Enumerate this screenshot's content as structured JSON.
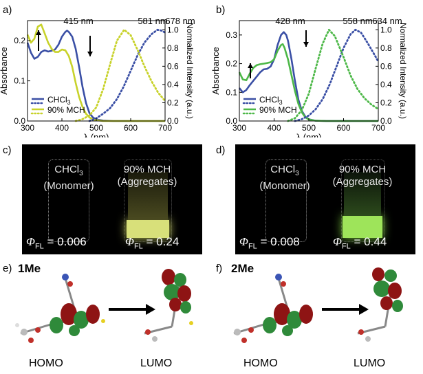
{
  "panels": {
    "a": "a)",
    "b": "b)",
    "c": "c)",
    "d": "d)",
    "e": "e)",
    "f": "f)"
  },
  "chart_data": [
    {
      "type": "line",
      "panel": "a",
      "xlabel": "λ (nm)",
      "ylabel": "Absorbance",
      "y2label": "Normalized Intensity (a.u.)",
      "xlim": [
        300,
        700
      ],
      "ylim": [
        0,
        0.25
      ],
      "y2lim": [
        0,
        1.1
      ],
      "xticks": [
        "300",
        "400",
        "500",
        "600",
        "700"
      ],
      "yticks": [
        "0.0",
        "0.1",
        "0.2"
      ],
      "y2ticks": [
        "0.0",
        "0.2",
        "0.4",
        "0.6",
        "0.8",
        "1.0"
      ],
      "annotations": [
        "415 nm",
        "581 nm",
        "678 nm"
      ],
      "legend": [
        "CHCl3",
        "90% MCH"
      ],
      "colors": {
        "chcl3": "#3a4fa5",
        "mch": "#c8d22a"
      },
      "series": [
        {
          "name": "CHCl3",
          "style": "solid",
          "axis": "left",
          "x": [
            300,
            310,
            320,
            330,
            340,
            350,
            360,
            370,
            380,
            390,
            400,
            410,
            415,
            420,
            430,
            440,
            450,
            460,
            470,
            480,
            490,
            500,
            520,
            550,
            600,
            700
          ],
          "y": [
            0.195,
            0.17,
            0.155,
            0.16,
            0.172,
            0.176,
            0.173,
            0.175,
            0.178,
            0.19,
            0.21,
            0.222,
            0.225,
            0.222,
            0.21,
            0.18,
            0.135,
            0.085,
            0.045,
            0.02,
            0.009,
            0.004,
            0.001,
            0,
            0,
            0
          ]
        },
        {
          "name": "90% MCH",
          "style": "solid",
          "axis": "left",
          "x": [
            300,
            310,
            320,
            330,
            340,
            350,
            360,
            370,
            380,
            390,
            400,
            410,
            420,
            430,
            440,
            450,
            460,
            470,
            480,
            490,
            500,
            520,
            550,
            600,
            700
          ],
          "y": [
            0.215,
            0.195,
            0.205,
            0.235,
            0.24,
            0.218,
            0.195,
            0.18,
            0.172,
            0.172,
            0.178,
            0.176,
            0.162,
            0.135,
            0.095,
            0.06,
            0.035,
            0.018,
            0.009,
            0.004,
            0.002,
            0,
            0,
            0,
            0
          ]
        },
        {
          "name": "CHCl3",
          "style": "dotted",
          "axis": "right",
          "x": [
            480,
            500,
            520,
            540,
            560,
            580,
            600,
            620,
            640,
            660,
            678,
            690,
            700
          ],
          "y": [
            0.0,
            0.03,
            0.08,
            0.14,
            0.24,
            0.38,
            0.55,
            0.72,
            0.86,
            0.95,
            1.0,
            0.99,
            0.97
          ]
        },
        {
          "name": "90% MCH",
          "style": "dotted",
          "axis": "right",
          "x": [
            440,
            460,
            480,
            500,
            520,
            540,
            560,
            581,
            600,
            620,
            640,
            660,
            680,
            700
          ],
          "y": [
            0.0,
            0.02,
            0.06,
            0.15,
            0.35,
            0.62,
            0.88,
            1.0,
            0.94,
            0.78,
            0.6,
            0.44,
            0.31,
            0.22
          ]
        }
      ]
    },
    {
      "type": "line",
      "panel": "b",
      "xlabel": "λ (nm)",
      "ylabel": "Absorbance",
      "y2label": "Normalized Intensity (a.u.)",
      "xlim": [
        300,
        700
      ],
      "ylim": [
        0,
        0.35
      ],
      "y2lim": [
        0,
        1.1
      ],
      "xticks": [
        "300",
        "400",
        "500",
        "600",
        "700"
      ],
      "yticks": [
        "0.0",
        "0.1",
        "0.2",
        "0.3"
      ],
      "y2ticks": [
        "0.0",
        "0.2",
        "0.4",
        "0.6",
        "0.8",
        "1.0"
      ],
      "annotations": [
        "428 nm",
        "558 nm",
        "634 nm"
      ],
      "legend": [
        "CHCl3",
        "90% MCH"
      ],
      "colors": {
        "chcl3": "#3a4fa5",
        "mch": "#4db848"
      },
      "series": [
        {
          "name": "CHCl3",
          "style": "solid",
          "axis": "left",
          "x": [
            300,
            310,
            320,
            330,
            340,
            350,
            360,
            370,
            380,
            390,
            400,
            410,
            420,
            428,
            435,
            440,
            450,
            460,
            470,
            480,
            490,
            500,
            520,
            550,
            600,
            700
          ],
          "y": [
            0.115,
            0.1,
            0.108,
            0.125,
            0.14,
            0.155,
            0.17,
            0.18,
            0.182,
            0.19,
            0.215,
            0.265,
            0.3,
            0.31,
            0.3,
            0.28,
            0.215,
            0.14,
            0.075,
            0.035,
            0.015,
            0.006,
            0.001,
            0,
            0,
            0
          ]
        },
        {
          "name": "90% MCH",
          "style": "solid",
          "axis": "left",
          "x": [
            300,
            310,
            320,
            330,
            340,
            350,
            360,
            370,
            380,
            390,
            400,
            410,
            420,
            425,
            430,
            440,
            450,
            460,
            470,
            480,
            490,
            500,
            520,
            550,
            600,
            700
          ],
          "y": [
            0.17,
            0.145,
            0.142,
            0.165,
            0.185,
            0.195,
            0.198,
            0.2,
            0.202,
            0.205,
            0.215,
            0.245,
            0.265,
            0.268,
            0.255,
            0.215,
            0.16,
            0.105,
            0.06,
            0.03,
            0.013,
            0.005,
            0.001,
            0,
            0,
            0
          ]
        },
        {
          "name": "CHCl3",
          "style": "dotted",
          "axis": "right",
          "x": [
            460,
            480,
            500,
            520,
            540,
            560,
            580,
            600,
            620,
            634,
            650,
            670,
            690,
            700
          ],
          "y": [
            0.0,
            0.02,
            0.06,
            0.13,
            0.24,
            0.4,
            0.6,
            0.8,
            0.95,
            1.0,
            0.97,
            0.85,
            0.72,
            0.65
          ]
        },
        {
          "name": "90% MCH",
          "style": "dotted",
          "axis": "right",
          "x": [
            440,
            460,
            480,
            500,
            520,
            540,
            558,
            575,
            600,
            620,
            640,
            660,
            680,
            700
          ],
          "y": [
            0.0,
            0.03,
            0.12,
            0.3,
            0.58,
            0.85,
            1.0,
            0.93,
            0.7,
            0.5,
            0.35,
            0.25,
            0.18,
            0.13
          ]
        }
      ]
    }
  ],
  "photos": {
    "c": {
      "left_line1": "CHCl",
      "left_sub": "3",
      "left_line2": "(Monomer)",
      "right_line1": "90% MCH",
      "right_line2": "(Aggregates)",
      "phi_left": "= 0.006",
      "phi_right": "= 0.24",
      "glow_color": "#d8e07a"
    },
    "d": {
      "left_line1": "CHCl",
      "left_sub": "3",
      "left_line2": "(Monomer)",
      "right_line1": "90% MCH",
      "right_line2": "(Aggregates)",
      "phi_left": "= 0.008",
      "phi_right": "= 0.44",
      "glow_color": "#9ee45a"
    },
    "phi_symbol": "Φ",
    "phi_sub": "FL"
  },
  "orbitals": {
    "e": {
      "compound": "1Me",
      "homo": "HOMO",
      "lumo": "LUMO"
    },
    "f": {
      "compound": "2Me",
      "homo": "HOMO",
      "lumo": "LUMO"
    }
  }
}
